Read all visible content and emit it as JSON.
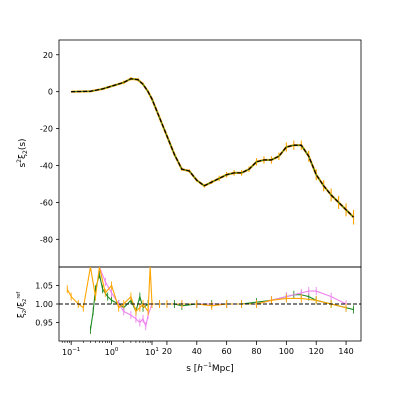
{
  "chart_data": [
    {
      "type": "line",
      "panel": "main",
      "ylabel_base": "s",
      "ylabel_sup": "2",
      "ylabel_rest": "ξ",
      "ylabel_sub": "2",
      "ylabel_tail": "(s)",
      "ylim": [
        -95,
        28
      ],
      "yticks": [
        20,
        0,
        -20,
        -40,
        -60,
        -80
      ],
      "colors": {
        "model": "#000000",
        "green": "#228b22",
        "violet": "#ee82ee",
        "orange": "#ffa500"
      },
      "series": [
        {
          "style": "dashed-model",
          "x": [
            0.1,
            0.3,
            0.6,
            1.0,
            2.0,
            3.0,
            4.5,
            6.0,
            8.0,
            10,
            15,
            20,
            25,
            30,
            35,
            40,
            45,
            50,
            55,
            60,
            65,
            70,
            75,
            80,
            85,
            90,
            95,
            100,
            105,
            110,
            115,
            120,
            125,
            130,
            135,
            140,
            145
          ],
          "y": [
            0,
            0.2,
            1.5,
            3,
            5,
            7,
            6.5,
            4,
            0,
            -4,
            -14,
            -24,
            -34,
            -42,
            -43,
            -48,
            -51,
            -49,
            -47,
            -45,
            -44,
            -44,
            -42,
            -38,
            -37,
            -37,
            -35,
            -30,
            -29,
            -29,
            -35,
            -45,
            -51,
            -56,
            -60,
            -64,
            -68
          ]
        }
      ],
      "errorbars": {
        "x": [
          2.0,
          3.0,
          4.5,
          6.0,
          8.0,
          10,
          15,
          20,
          25,
          30,
          35,
          40,
          45,
          50,
          55,
          60,
          65,
          70,
          75,
          80,
          85,
          90,
          95,
          100,
          105,
          110,
          115,
          120,
          125,
          130,
          135,
          140,
          145
        ],
        "y": [
          5,
          7,
          6.5,
          4,
          0,
          -4,
          -14,
          -24,
          -34,
          -42,
          -43,
          -48,
          -51,
          -49,
          -47,
          -45,
          -44,
          -44,
          -42,
          -38,
          -37,
          -37,
          -35,
          -30,
          -29,
          -29,
          -35,
          -45,
          -51,
          -56,
          -60,
          -64,
          -68
        ],
        "err": [
          1,
          1,
          1,
          1,
          1,
          1,
          1,
          1,
          1,
          1,
          1,
          1,
          1,
          1,
          1.5,
          1.5,
          1.5,
          1.5,
          1.5,
          2,
          2,
          2,
          2,
          2.5,
          2.5,
          2.5,
          3,
          3,
          3,
          3.5,
          3.5,
          3.5,
          4
        ]
      }
    },
    {
      "type": "line",
      "panel": "ratio",
      "ylabel_base": "ξ",
      "ylabel_sub": "2",
      "ylabel_mid": "/ξ",
      "ylabel_sup2": "ref",
      "ylabel_sub2": "2",
      "ylim": [
        0.9,
        1.1
      ],
      "yticks": [
        1.05,
        1.0,
        0.95
      ],
      "ytick_labels": [
        "1.05",
        "1.00",
        "0.95"
      ],
      "xlabel_pre": "s [",
      "xlabel_h": "h",
      "xlabel_sup": "−1",
      "xlabel_post": "Mpc]",
      "xticks_log": [
        {
          "x": 0.1,
          "base": "10",
          "exp": "−1"
        },
        {
          "x": 1,
          "base": "10",
          "exp": "0"
        },
        {
          "x": 10,
          "base": "10",
          "exp": "1"
        }
      ],
      "xticks_lin": [
        20,
        40,
        60,
        80,
        100,
        120,
        140
      ],
      "x_axis": "symlog, linear above 10",
      "reference_line": 1.0,
      "series": [
        {
          "color": "green",
          "x": [
            0.3,
            0.35,
            0.4,
            0.5,
            0.6,
            0.8,
            1.0,
            1.5,
            2,
            3,
            4,
            5,
            6,
            8,
            10,
            15,
            20,
            25,
            30,
            40,
            50,
            60,
            70,
            80,
            90,
            100,
            105,
            110,
            115,
            120,
            130,
            140,
            145
          ],
          "y": [
            0.93,
            0.98,
            1.04,
            1.08,
            1.04,
            1.02,
            1.01,
            1.0,
            0.99,
            1.01,
            0.98,
            1.02,
            0.99,
            1.0,
            1.0,
            1.0,
            1.0,
            1.0,
            0.995,
            1.0,
            1.0,
            1.0,
            1.0,
            1.005,
            1.01,
            1.02,
            1.025,
            1.025,
            1.02,
            1.01,
            1.0,
            0.99,
            0.985
          ]
        },
        {
          "color": "violet",
          "x": [
            0.5,
            0.7,
            1.0,
            1.5,
            2,
            3,
            4,
            5,
            6,
            7,
            8,
            10,
            15,
            20,
            30,
            40,
            60,
            80,
            90,
            100,
            110,
            115,
            120,
            130,
            140
          ],
          "y": [
            1.1,
            1.06,
            1.03,
            1.0,
            0.98,
            0.97,
            0.96,
            0.95,
            0.96,
            0.94,
            0.97,
            1.0,
            1.0,
            1.0,
            1.0,
            1.0,
            1.0,
            1.0,
            1.01,
            1.02,
            1.03,
            1.035,
            1.035,
            1.02,
            1.0
          ]
        },
        {
          "color": "orange",
          "x": [
            0.08,
            0.1,
            0.15,
            0.2,
            0.3,
            0.4,
            0.5,
            0.7,
            1.0,
            1.5,
            2,
            3,
            4,
            5,
            6,
            8,
            9,
            10,
            15,
            20,
            30,
            40,
            50,
            60,
            70,
            80,
            90,
            100,
            110,
            120,
            130,
            140
          ],
          "y": [
            1.04,
            1.02,
            1.0,
            0.99,
            1.1,
            1.02,
            1.1,
            1.03,
            1.05,
            0.99,
            1.0,
            1.02,
            0.98,
            0.99,
            1.0,
            0.98,
            1.1,
            1.0,
            1.0,
            1.0,
            1.0,
            1.0,
            0.995,
            1.0,
            1.0,
            1.0,
            1.01,
            1.015,
            1.015,
            1.01,
            1.0,
            0.99
          ]
        }
      ]
    }
  ]
}
